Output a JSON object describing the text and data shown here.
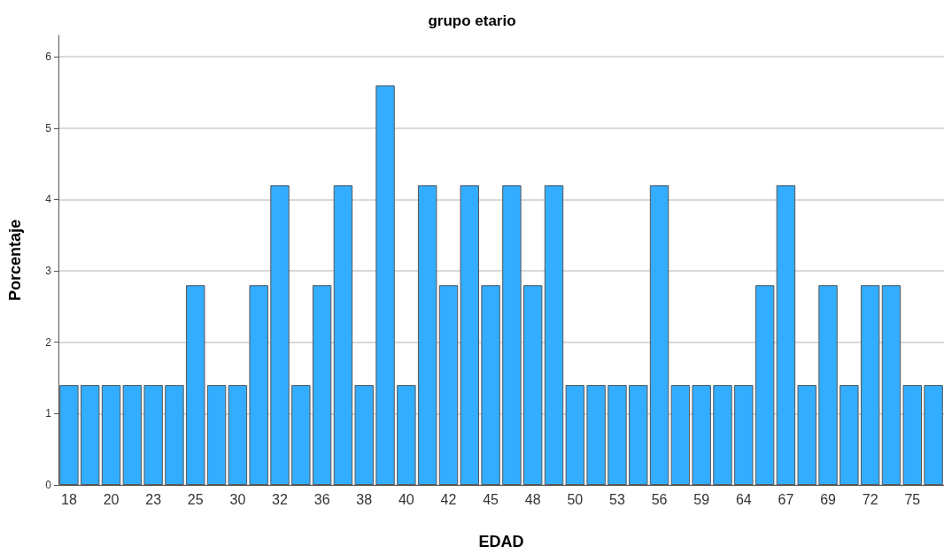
{
  "chart_data": {
    "type": "bar",
    "title": "grupo etario",
    "xlabel": "EDAD",
    "ylabel": "Porcentaje",
    "categories": [
      "18",
      null,
      "20",
      null,
      "23",
      null,
      "25",
      null,
      "30",
      null,
      "32",
      null,
      "36",
      null,
      "38",
      null,
      "40",
      null,
      "42",
      null,
      "45",
      null,
      "48",
      null,
      "50",
      null,
      "53",
      null,
      "56",
      null,
      "59",
      null,
      "64",
      null,
      "67",
      null,
      "69",
      null,
      "72",
      null,
      "75",
      null
    ],
    "values": [
      1.4,
      1.4,
      1.4,
      1.4,
      1.4,
      1.4,
      2.8,
      1.4,
      1.4,
      2.8,
      4.2,
      1.4,
      2.8,
      4.2,
      1.4,
      5.6,
      1.4,
      4.2,
      2.8,
      4.2,
      2.8,
      4.2,
      2.8,
      4.2,
      1.4,
      1.4,
      1.4,
      1.4,
      4.2,
      1.4,
      1.4,
      1.4,
      1.4,
      2.8,
      4.2,
      1.4,
      2.8,
      1.4,
      2.8,
      2.8,
      1.4,
      1.4
    ],
    "color": "#33adff",
    "ylim": [
      0,
      6.3
    ],
    "yticks": [
      0,
      1,
      2,
      3,
      4,
      5,
      6
    ],
    "grid": "y"
  }
}
